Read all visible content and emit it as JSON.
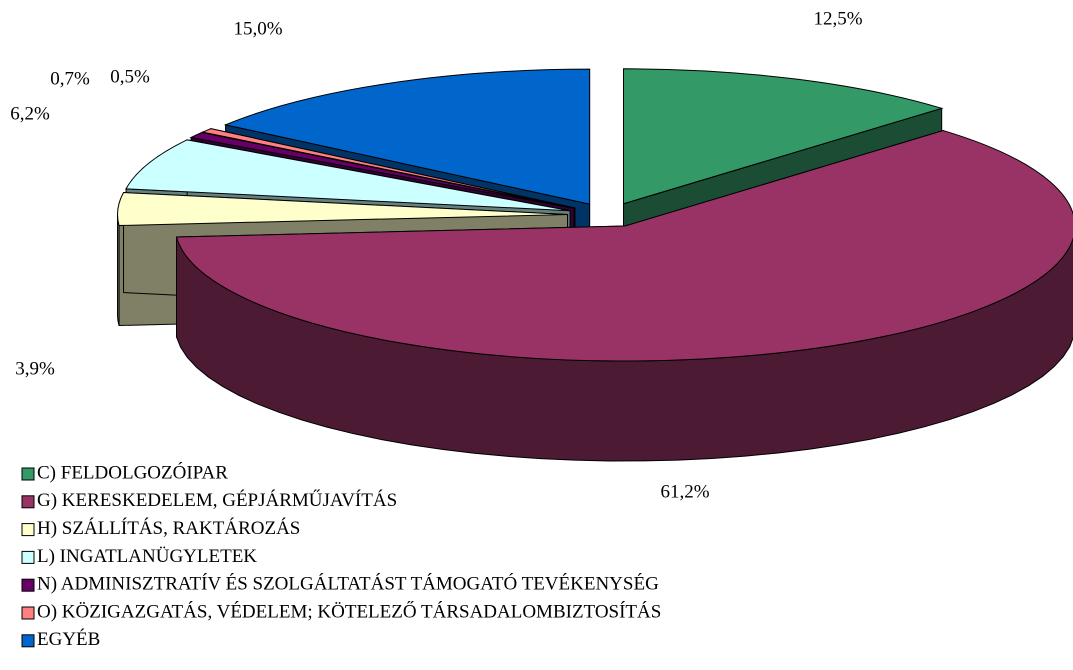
{
  "chart_data": {
    "type": "pie3d",
    "categories": [
      "C) FELDOLGOZÓIPAR",
      "G) KERESKEDELEM, GÉPJÁRMŰJAVÍTÁS",
      "H) SZÁLLÍTÁS, RAKTÁROZÁS",
      "L) INGATLANÜGYLETEK",
      "N) ADMINISZTRATÍV ÉS SZOLGÁLTATÁST TÁMOGATÓ TEVÉKENYSÉG",
      "O) KÖZIGAZGATÁS, VÉDELEM; KÖTELEZŐ TÁRSADALOMBIZTOSÍTÁS",
      "EGYÉB"
    ],
    "values": [
      12.5,
      61.2,
      3.9,
      6.2,
      0.7,
      0.5,
      15.0
    ],
    "value_labels": [
      "12,5%",
      "61,2%",
      "3,9%",
      "6,2%",
      "0,7%",
      "0,5%",
      "15,0%"
    ],
    "colors": [
      "#339966",
      "#993366",
      "#ffffcc",
      "#ccffff",
      "#660066",
      "#ff8080",
      "#0066cc"
    ],
    "legend": "bottom-left"
  }
}
